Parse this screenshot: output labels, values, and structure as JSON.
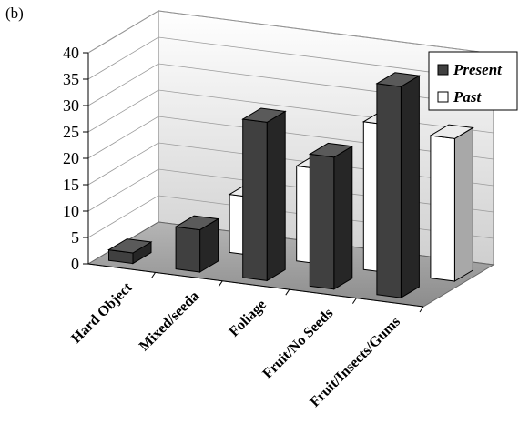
{
  "panel_label": "(b)",
  "chart_data": {
    "type": "bar",
    "title": "",
    "xlabel": "",
    "ylabel": "",
    "categories": [
      "Hard Object",
      "Mixed/seeda",
      "Foliage",
      "Fruit/No Seeds",
      "Fruit/Insects/Gums"
    ],
    "series": [
      {
        "name": "Present",
        "values": [
          2,
          8,
          30,
          25,
          40
        ],
        "color": "#404040"
      },
      {
        "name": "Past",
        "values": [
          0,
          11,
          18,
          28,
          27
        ],
        "color": "#ffffff"
      }
    ],
    "ylim": [
      0,
      40
    ],
    "yticks": [
      0,
      5,
      10,
      15,
      20,
      25,
      30,
      35,
      40
    ],
    "grid": true,
    "legend_position": "top-right",
    "style": "3d"
  }
}
